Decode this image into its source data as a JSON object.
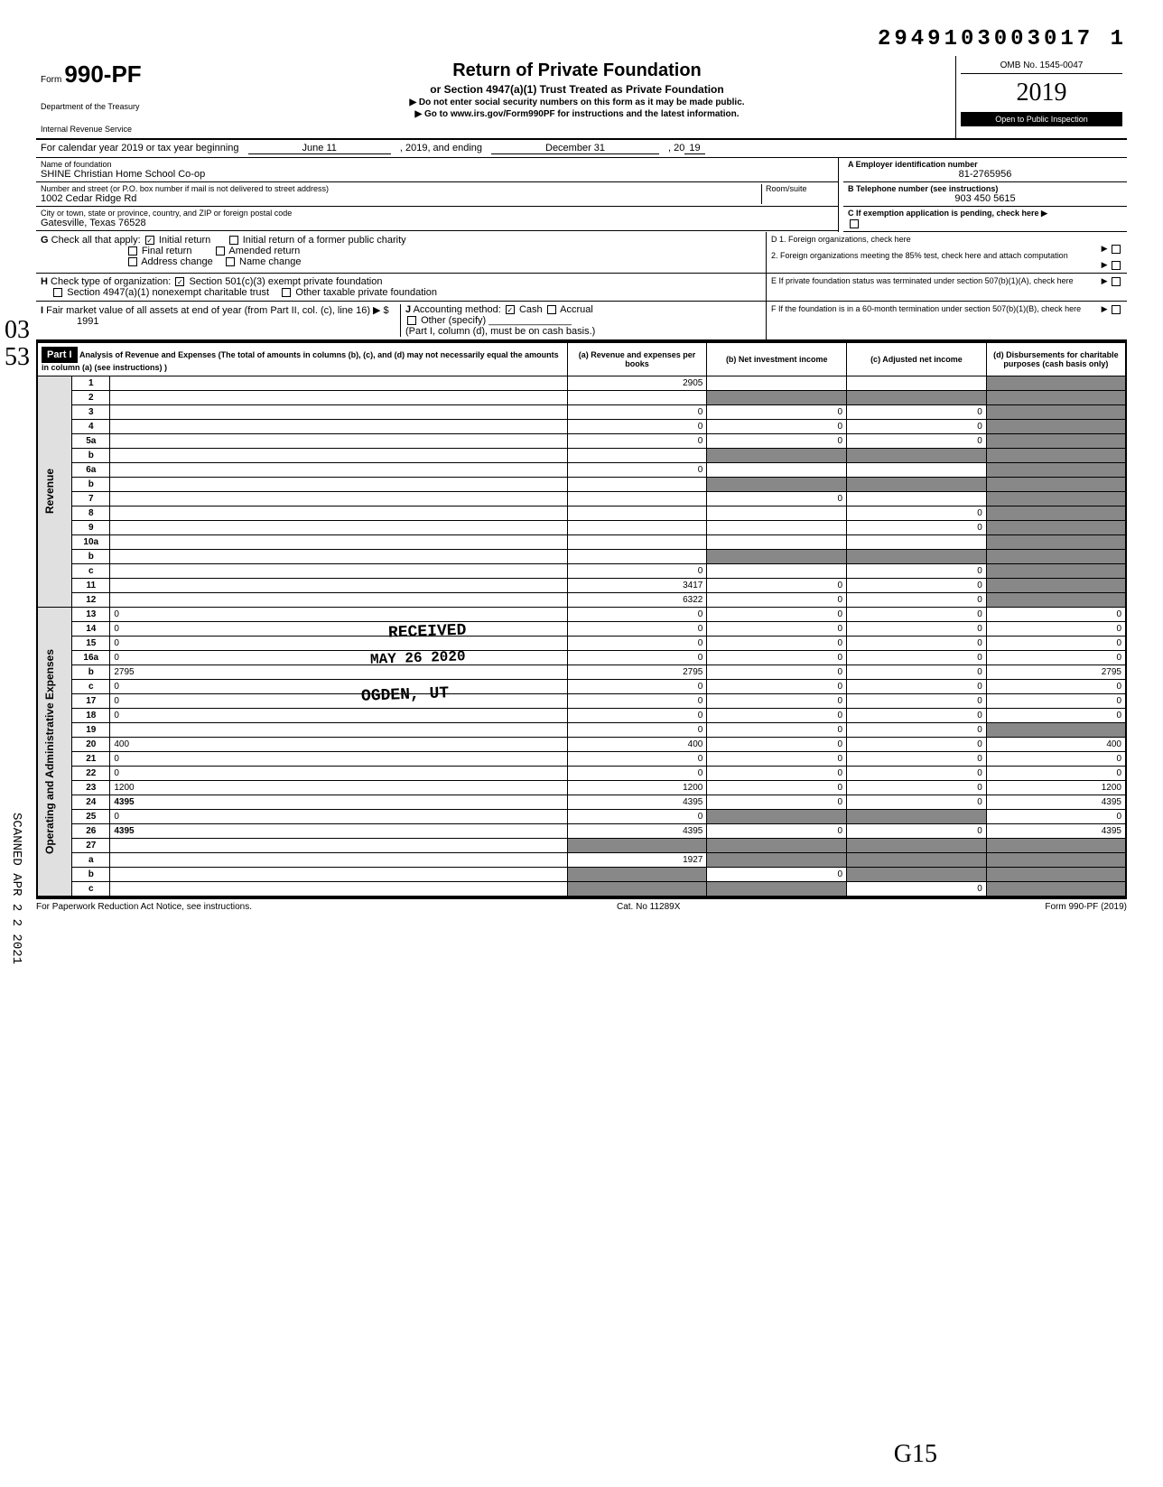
{
  "top_stamp_number": "2949103003017 1",
  "form": {
    "prefix": "Form",
    "number": "990-PF",
    "dept1": "Department of the Treasury",
    "dept2": "Internal Revenue Service"
  },
  "header": {
    "title": "Return of Private Foundation",
    "subtitle": "or Section 4947(a)(1) Trust Treated as Private Foundation",
    "instr1": "▶ Do not enter social security numbers on this form as it may be made public.",
    "instr2": "▶ Go to www.irs.gov/Form990PF for instructions and the latest information.",
    "omb": "OMB No. 1545-0047",
    "year": "2019",
    "inspection": "Open to Public Inspection"
  },
  "calendar_year": {
    "label": "For calendar year 2019 or tax year beginning",
    "begin": "June 11",
    "mid": ", 2019, and ending",
    "end": "December 31",
    "suffix": ", 20",
    "year_suffix": "19"
  },
  "foundation": {
    "name_label": "Name of foundation",
    "name": "SHINE Christian Home School Co-op",
    "ein_label": "A  Employer identification number",
    "ein": "81-2765956",
    "addr_label": "Number and street (or P.O. box number if mail is not delivered to street address)",
    "room_label": "Room/suite",
    "address": "1002 Cedar Ridge Rd",
    "phone_label": "B  Telephone number (see instructions)",
    "phone": "903 450 5615",
    "city_label": "City or town, state or province, country, and ZIP or foreign postal code",
    "city": "Gatesville, Texas 76528",
    "c_label": "C  If exemption application is pending, check here ▶"
  },
  "g_row": {
    "letter": "G",
    "label": "Check all that apply:",
    "opts": [
      "Initial return",
      "Final return",
      "Address change",
      "Initial return of a former public charity",
      "Amended return",
      "Name change"
    ],
    "checked": "Initial return"
  },
  "d_row": {
    "d1": "D  1. Foreign organizations, check here",
    "d2": "2. Foreign organizations meeting the 85% test, check here and attach computation"
  },
  "h_row": {
    "letter": "H",
    "label": "Check type of organization:",
    "opt1": "Section 501(c)(3) exempt private foundation",
    "opt2": "Section 4947(a)(1) nonexempt charitable trust",
    "opt3": "Other taxable private foundation"
  },
  "e_row": "E  If private foundation status was terminated under section 507(b)(1)(A), check here",
  "i_row": {
    "letter": "I",
    "label": "Fair market value of all assets at end of year (from Part II, col. (c), line 16) ▶ $",
    "value": "1991"
  },
  "j_row": {
    "letter": "J",
    "label": "Accounting method:",
    "opts": [
      "Cash",
      "Accrual"
    ],
    "other": "Other (specify)",
    "note": "(Part I, column (d), must be on cash basis.)"
  },
  "f_row": "F  If the foundation is in a 60-month termination under section 507(b)(1)(B), check here",
  "part1": {
    "header": "Part I",
    "title": "Analysis of Revenue and Expenses",
    "note": "(The total of amounts in columns (b), (c), and (d) may not necessarily equal the amounts in column (a) (see instructions) )",
    "col_a": "(a) Revenue and expenses per books",
    "col_b": "(b) Net investment income",
    "col_c": "(c) Adjusted net income",
    "col_d": "(d) Disbursements for charitable purposes (cash basis only)"
  },
  "revenue_label": "Revenue",
  "expenses_label": "Operating and Administrative Expenses",
  "rows": [
    {
      "n": "1",
      "d": "",
      "a": "2905",
      "b": "",
      "c": ""
    },
    {
      "n": "2",
      "d": "",
      "a": "",
      "b": "",
      "c": ""
    },
    {
      "n": "3",
      "d": "",
      "a": "0",
      "b": "0",
      "c": "0"
    },
    {
      "n": "4",
      "d": "",
      "a": "0",
      "b": "0",
      "c": "0"
    },
    {
      "n": "5a",
      "d": "",
      "a": "0",
      "b": "0",
      "c": "0"
    },
    {
      "n": "b",
      "d": "",
      "a": "",
      "b": "",
      "c": ""
    },
    {
      "n": "6a",
      "d": "",
      "a": "0",
      "b": "",
      "c": ""
    },
    {
      "n": "b",
      "d": "",
      "a": "",
      "b": "",
      "c": ""
    },
    {
      "n": "7",
      "d": "",
      "a": "",
      "b": "0",
      "c": ""
    },
    {
      "n": "8",
      "d": "",
      "a": "",
      "b": "",
      "c": "0"
    },
    {
      "n": "9",
      "d": "",
      "a": "",
      "b": "",
      "c": "0"
    },
    {
      "n": "10a",
      "d": "",
      "a": "",
      "b": "",
      "c": ""
    },
    {
      "n": "b",
      "d": "",
      "a": "",
      "b": "",
      "c": ""
    },
    {
      "n": "c",
      "d": "",
      "a": "0",
      "b": "",
      "c": "0"
    },
    {
      "n": "11",
      "d": "",
      "a": "3417",
      "b": "0",
      "c": "0"
    },
    {
      "n": "12",
      "d": "",
      "a": "6322",
      "b": "0",
      "c": "0"
    },
    {
      "n": "13",
      "d": "0",
      "a": "0",
      "b": "0",
      "c": "0"
    },
    {
      "n": "14",
      "d": "0",
      "a": "0",
      "b": "0",
      "c": "0"
    },
    {
      "n": "15",
      "d": "0",
      "a": "0",
      "b": "0",
      "c": "0"
    },
    {
      "n": "16a",
      "d": "0",
      "a": "0",
      "b": "0",
      "c": "0"
    },
    {
      "n": "b",
      "d": "2795",
      "a": "2795",
      "b": "0",
      "c": "0"
    },
    {
      "n": "c",
      "d": "0",
      "a": "0",
      "b": "0",
      "c": "0"
    },
    {
      "n": "17",
      "d": "0",
      "a": "0",
      "b": "0",
      "c": "0"
    },
    {
      "n": "18",
      "d": "0",
      "a": "0",
      "b": "0",
      "c": "0"
    },
    {
      "n": "19",
      "d": "",
      "a": "0",
      "b": "0",
      "c": "0"
    },
    {
      "n": "20",
      "d": "400",
      "a": "400",
      "b": "0",
      "c": "0"
    },
    {
      "n": "21",
      "d": "0",
      "a": "0",
      "b": "0",
      "c": "0"
    },
    {
      "n": "22",
      "d": "0",
      "a": "0",
      "b": "0",
      "c": "0"
    },
    {
      "n": "23",
      "d": "1200",
      "a": "1200",
      "b": "0",
      "c": "0"
    },
    {
      "n": "24",
      "d": "4395",
      "a": "4395",
      "b": "0",
      "c": "0"
    },
    {
      "n": "25",
      "d": "0",
      "a": "0",
      "b": "",
      "c": ""
    },
    {
      "n": "26",
      "d": "4395",
      "a": "4395",
      "b": "0",
      "c": "0"
    },
    {
      "n": "27",
      "d": "",
      "a": "",
      "b": "",
      "c": ""
    },
    {
      "n": "a",
      "d": "",
      "a": "1927",
      "b": "",
      "c": ""
    },
    {
      "n": "b",
      "d": "",
      "a": "",
      "b": "0",
      "c": ""
    },
    {
      "n": "c",
      "d": "",
      "a": "",
      "b": "",
      "c": "0"
    }
  ],
  "received_stamp": {
    "line1": "RECEIVED",
    "line2": "MAY 26 2020",
    "line3": "OGDEN, UT"
  },
  "footer": {
    "left": "For Paperwork Reduction Act Notice, see instructions.",
    "center": "Cat. No  11289X",
    "right": "Form 990-PF (2019)"
  },
  "side_scan": "SCANNED APR 2 2 2021",
  "handwrite_03": "03",
  "handwrite_53": "53",
  "handwrite_g15": "G15"
}
